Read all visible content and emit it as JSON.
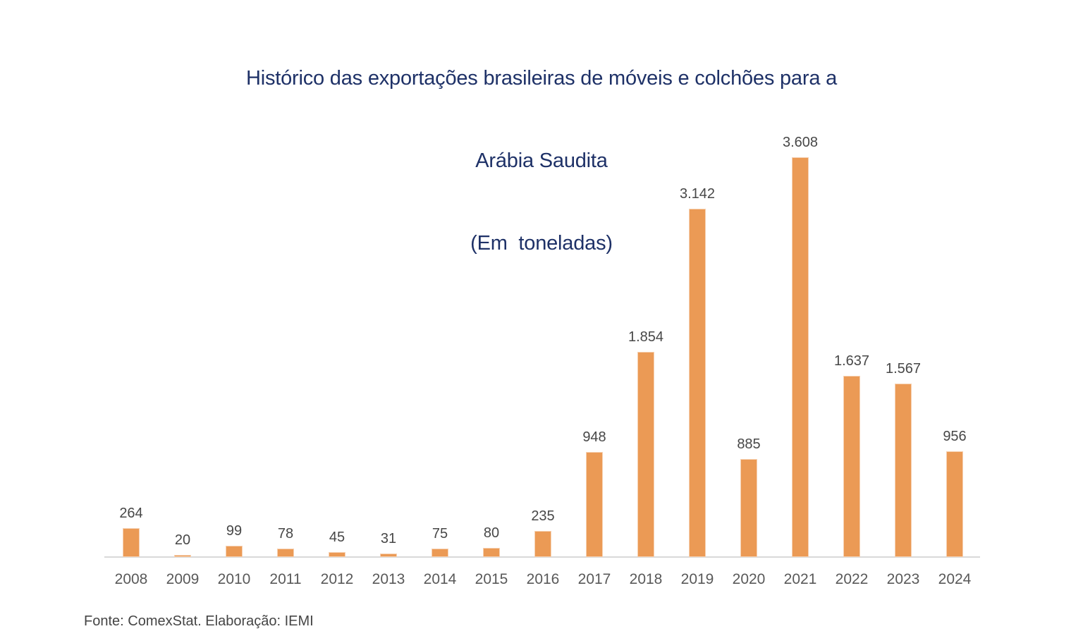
{
  "title": {
    "line1": "Histórico das exportações brasileiras de móveis e colchões para a",
    "line2": "Arábia Saudita",
    "line3": "(Em  toneladas)",
    "color": "#1E3167"
  },
  "footer": {
    "text": "Fonte: ComexStat. Elaboração: IEMI",
    "color": "#454545"
  },
  "chart_data": {
    "type": "bar",
    "title": "Histórico das exportações brasileiras de móveis e colchões para a Arábia Saudita",
    "unit": "toneladas",
    "categories": [
      "2008",
      "2009",
      "2010",
      "2011",
      "2012",
      "2013",
      "2014",
      "2015",
      "2016",
      "2017",
      "2018",
      "2019",
      "2020",
      "2021",
      "2022",
      "2023",
      "2024"
    ],
    "values": [
      264,
      20,
      99,
      78,
      45,
      31,
      75,
      80,
      235,
      948,
      1854,
      3142,
      885,
      3608,
      1637,
      1567,
      956
    ],
    "value_labels": [
      "264",
      "20",
      "99",
      "78",
      "45",
      "31",
      "75",
      "80",
      "235",
      "948",
      "1.854",
      "3.142",
      "885",
      "3.608",
      "1.637",
      "1.567",
      "956"
    ],
    "xlabel": "",
    "ylabel": "",
    "ylim": [
      0,
      3800
    ],
    "grid": false,
    "legend": "none",
    "y_axis_visible": false,
    "bar_color": "#EB9A55",
    "value_label_color": "#474747",
    "tick_label_color": "#595959",
    "axis_line_color": "#D9D9D9"
  }
}
